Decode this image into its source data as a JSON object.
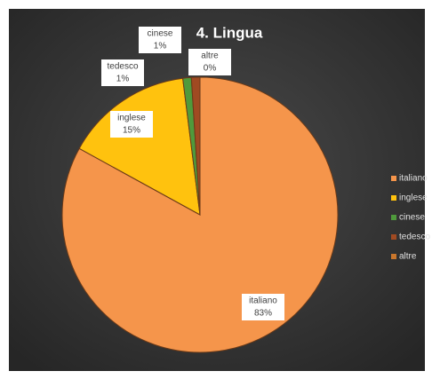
{
  "chart_data": {
    "type": "pie",
    "title": "4. Lingua",
    "categories": [
      "italiano",
      "inglese",
      "cinese",
      "tedesco",
      "altre"
    ],
    "values": [
      83,
      15,
      1,
      1,
      0
    ],
    "value_labels": [
      "83%",
      "15%",
      "1%",
      "1%",
      "0%"
    ],
    "colors": [
      "#f5954b",
      "#ffc20e",
      "#4f9a3c",
      "#a04a22",
      "#c9762c"
    ],
    "legend": "right"
  }
}
